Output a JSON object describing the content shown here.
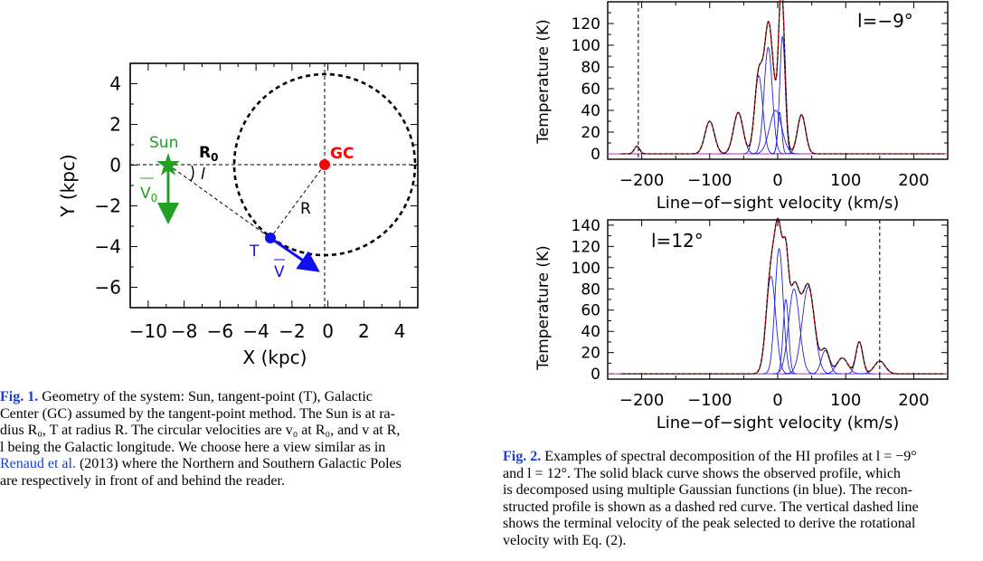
{
  "fig1": {
    "xlabel": "X (kpc)",
    "ylabel": "Y (kpc)",
    "xticks": [
      "-10",
      "-8",
      "-6",
      "-4",
      "-2",
      "0",
      "2",
      "4"
    ],
    "yticks": [
      "4",
      "2",
      "0",
      "-2",
      "-4",
      "-6"
    ],
    "labels": {
      "sun": "Sun",
      "gc": "GC",
      "r0": "R",
      "r0_sub": "0",
      "l": "l",
      "r": "R",
      "t": "T",
      "v": "V",
      "v0": "V",
      "v0_sub": "0"
    },
    "colors": {
      "sun": "#22a022",
      "gc": "#ff0000",
      "tangent": "#1010ee"
    }
  },
  "fig1_caption": {
    "label": "Fig. 1.",
    "lines": [
      "Geometry of the system: Sun, tangent-point (T), Galactic",
      "Center (GC) assumed by the tangent-point method. The Sun is at ra-",
      "dius R₀, T at radius R. The circular velocities are v₀ at R₀, and v at R,",
      "l being the Galactic longitude. We choose here a view similar as in",
      "(2013) where the Northern and Southern Galactic Poles",
      "are respectively in front of and behind the reader."
    ],
    "link": "Renaud et al."
  },
  "fig2_top": {
    "label": "l=−9°",
    "ylabel": "Temperature (K)",
    "xlabel": "Line−of−sight velocity (km/s)",
    "xticks": [
      "−200",
      "−100",
      "0",
      "100",
      "200"
    ],
    "yticks": [
      "0",
      "20",
      "40",
      "60",
      "80",
      "100",
      "120"
    ]
  },
  "fig2_bottom": {
    "label": "l=12°",
    "ylabel": "Temperature (K)",
    "xlabel": "Line−of−sight velocity (km/s)",
    "xticks": [
      "−200",
      "−100",
      "0",
      "100",
      "200"
    ],
    "yticks": [
      "0",
      "20",
      "40",
      "60",
      "80",
      "100",
      "120",
      "140"
    ]
  },
  "fig2_caption": {
    "label": "Fig. 2.",
    "lines": [
      "Examples of spectral decomposition of the HI profiles at l = −9°",
      "and l = 12°. The solid black curve shows the observed profile, which",
      "is decomposed using multiple Gaussian functions (in blue). The recon-",
      "structed profile is shown as a dashed red curve. The vertical dashed line",
      "shows the terminal velocity of the peak selected to derive the rotational",
      "velocity with Eq. (2)."
    ]
  },
  "chart_data": [
    {
      "type": "line",
      "x_range": [
        -250,
        250
      ],
      "ylim": [
        -5,
        140
      ],
      "terminal_velocity": -205,
      "gaussians": [
        {
          "mu": -207,
          "sigma": 4,
          "amp": 7
        },
        {
          "mu": -100,
          "sigma": 7,
          "amp": 30
        },
        {
          "mu": -58,
          "sigma": 7,
          "amp": 38
        },
        {
          "mu": -28,
          "sigma": 6,
          "amp": 72
        },
        {
          "mu": -14,
          "sigma": 6,
          "amp": 98
        },
        {
          "mu": -3,
          "sigma": 9,
          "amp": 40
        },
        {
          "mu": 3,
          "sigma": 3,
          "amp": 38
        },
        {
          "mu": 7,
          "sigma": 4,
          "amp": 108
        },
        {
          "mu": 35,
          "sigma": 6,
          "amp": 36
        }
      ]
    },
    {
      "type": "line",
      "x_range": [
        -250,
        250
      ],
      "ylim": [
        -5,
        145
      ],
      "terminal_velocity": 150,
      "gaussians": [
        {
          "mu": -10,
          "sigma": 7,
          "amp": 92
        },
        {
          "mu": 2,
          "sigma": 6,
          "amp": 118
        },
        {
          "mu": 12,
          "sigma": 4,
          "amp": 70
        },
        {
          "mu": 24,
          "sigma": 8,
          "amp": 80
        },
        {
          "mu": 45,
          "sigma": 9,
          "amp": 82
        },
        {
          "mu": 70,
          "sigma": 6,
          "amp": 22
        },
        {
          "mu": 95,
          "sigma": 8,
          "amp": 15
        },
        {
          "mu": 120,
          "sigma": 5,
          "amp": 30
        },
        {
          "mu": 150,
          "sigma": 8,
          "amp": 12
        }
      ]
    }
  ]
}
